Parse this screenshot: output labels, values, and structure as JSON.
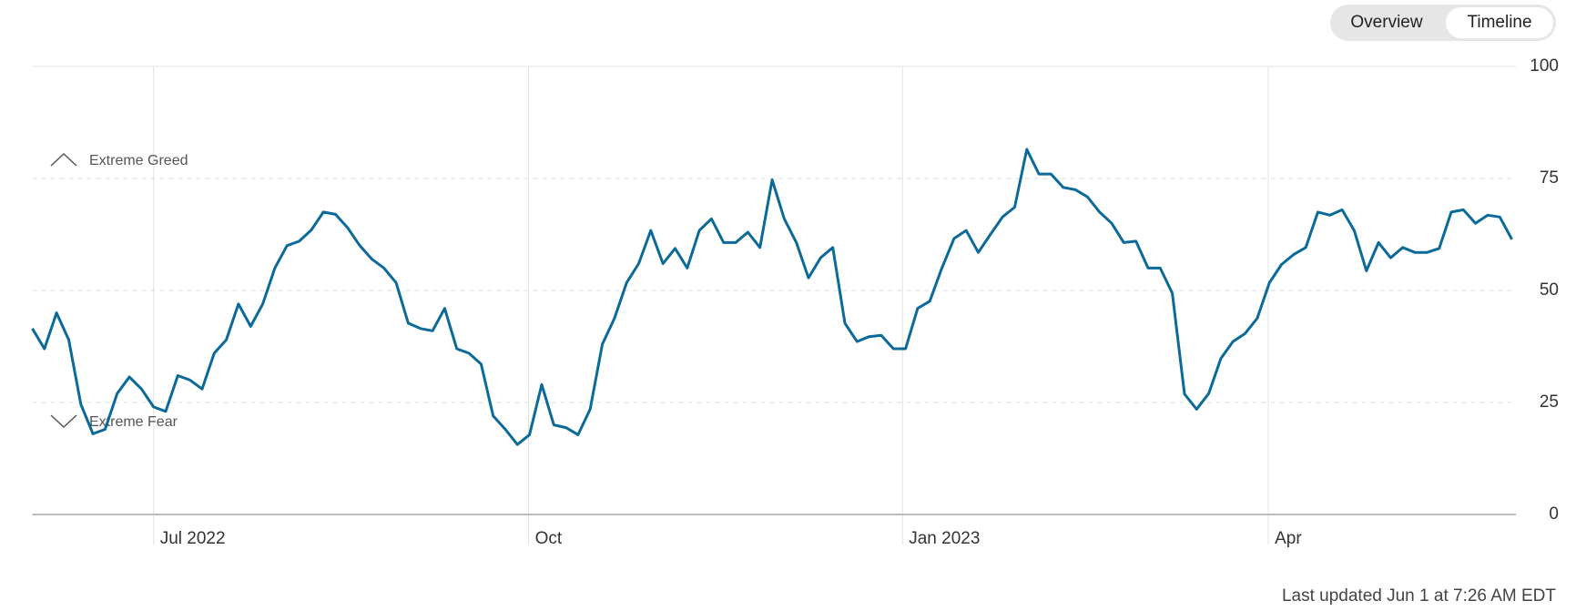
{
  "view_toggle": [
    "Overview",
    "Timeline"
  ],
  "last_updated": "Last updated Jun 1 at 7:26 AM EDT",
  "chart_data": {
    "type": "line",
    "annotations": [
      "Extreme Greed",
      "Extreme Fear"
    ],
    "color": "#0b6a9a",
    "grid": true,
    "values": [
      41.5,
      37,
      45,
      39,
      24.6,
      18,
      19,
      27,
      30.7,
      28,
      24,
      23,
      31,
      30,
      28,
      36,
      39,
      47,
      42,
      47,
      55,
      60,
      61,
      63.5,
      67.5,
      67,
      64,
      60,
      57,
      55,
      51.7,
      42.7,
      41.5,
      41,
      46,
      37,
      36,
      33.6,
      22,
      19,
      15.6,
      17.8,
      29,
      20,
      19.4,
      17.8,
      23.5,
      38,
      43.8,
      51.7,
      56,
      63.4,
      56,
      59.4,
      55,
      63.4,
      66,
      60.7,
      60.7,
      63,
      59.6,
      74.7,
      66,
      60.7,
      52.8,
      57.3,
      59.6,
      42.7,
      38.6,
      39.7,
      40,
      37,
      37,
      46,
      47.6,
      55,
      61.6,
      63.4,
      58.5,
      62.5,
      66.4,
      68.6,
      81.5,
      76,
      76,
      73,
      72.5,
      70.9,
      67.5,
      65,
      60.7,
      61,
      55,
      55,
      49.4,
      26.9,
      23.5,
      27,
      34.8,
      38.6,
      40.4,
      43.8,
      51.7,
      55.8,
      58,
      59.6,
      67.5,
      66.8,
      68,
      63.4,
      54.4,
      60.7,
      57.3,
      59.6,
      58.5,
      58.5,
      59.4,
      67.5,
      68,
      65,
      66.8,
      66.4,
      61.4
    ],
    "xlim": [
      0,
      122.33
    ],
    "xticks": [
      {
        "value": 10,
        "label": "Jul 2022"
      },
      {
        "value": 40.92,
        "label": "Oct"
      },
      {
        "value": 71.75,
        "label": "Jan 2023"
      },
      {
        "value": 101.92,
        "label": "Apr"
      }
    ],
    "ylim": [
      0,
      100
    ],
    "yticks": [
      0,
      25,
      50,
      75,
      100
    ]
  }
}
